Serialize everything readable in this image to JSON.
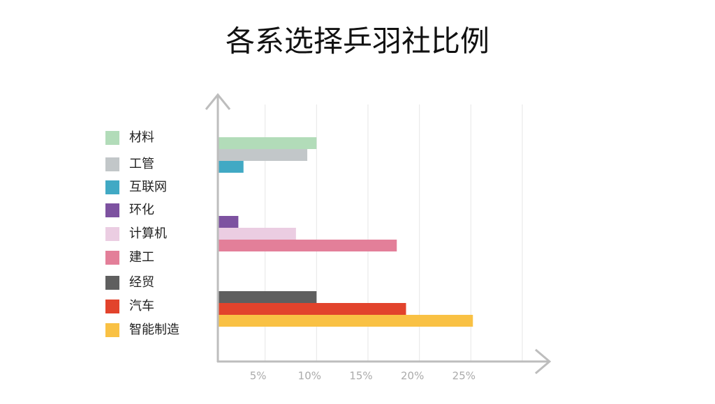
{
  "chart_data": {
    "type": "barh",
    "title": "各系选择乒羽社比例",
    "categories": [
      null,
      null,
      null
    ],
    "series": [
      {
        "name": "材料",
        "color": "#b2dcb9",
        "values": [
          10.0,
          null,
          null
        ]
      },
      {
        "name": "工管",
        "color": "#c2c7c9",
        "values": [
          9.1,
          null,
          null
        ]
      },
      {
        "name": "互联网",
        "color": "#41a9c4",
        "values": [
          2.9,
          null,
          null
        ]
      },
      {
        "name": "环化",
        "color": "#7d52a0",
        "values": [
          null,
          2.4,
          null
        ]
      },
      {
        "name": "计算机",
        "color": "#ebcde2",
        "values": [
          null,
          8.0,
          null
        ]
      },
      {
        "name": "建工",
        "color": "#e37f99",
        "values": [
          null,
          17.8,
          null
        ]
      },
      {
        "name": "经贸",
        "color": "#5f5f5f",
        "values": [
          null,
          null,
          10.0
        ]
      },
      {
        "name": "汽车",
        "color": "#e2432c",
        "values": [
          null,
          null,
          18.7
        ]
      },
      {
        "name": "智能制造",
        "color": "#f9c144",
        "values": [
          null,
          null,
          25.2
        ]
      }
    ],
    "xlim": [
      0,
      30
    ],
    "xticks": [
      {
        "value": 5,
        "label": "5%"
      },
      {
        "value": 10,
        "label": "10%"
      },
      {
        "value": 15,
        "label": "15%"
      },
      {
        "value": 20,
        "label": "20%"
      },
      {
        "value": 25,
        "label": "25%"
      }
    ],
    "grid": true
  }
}
